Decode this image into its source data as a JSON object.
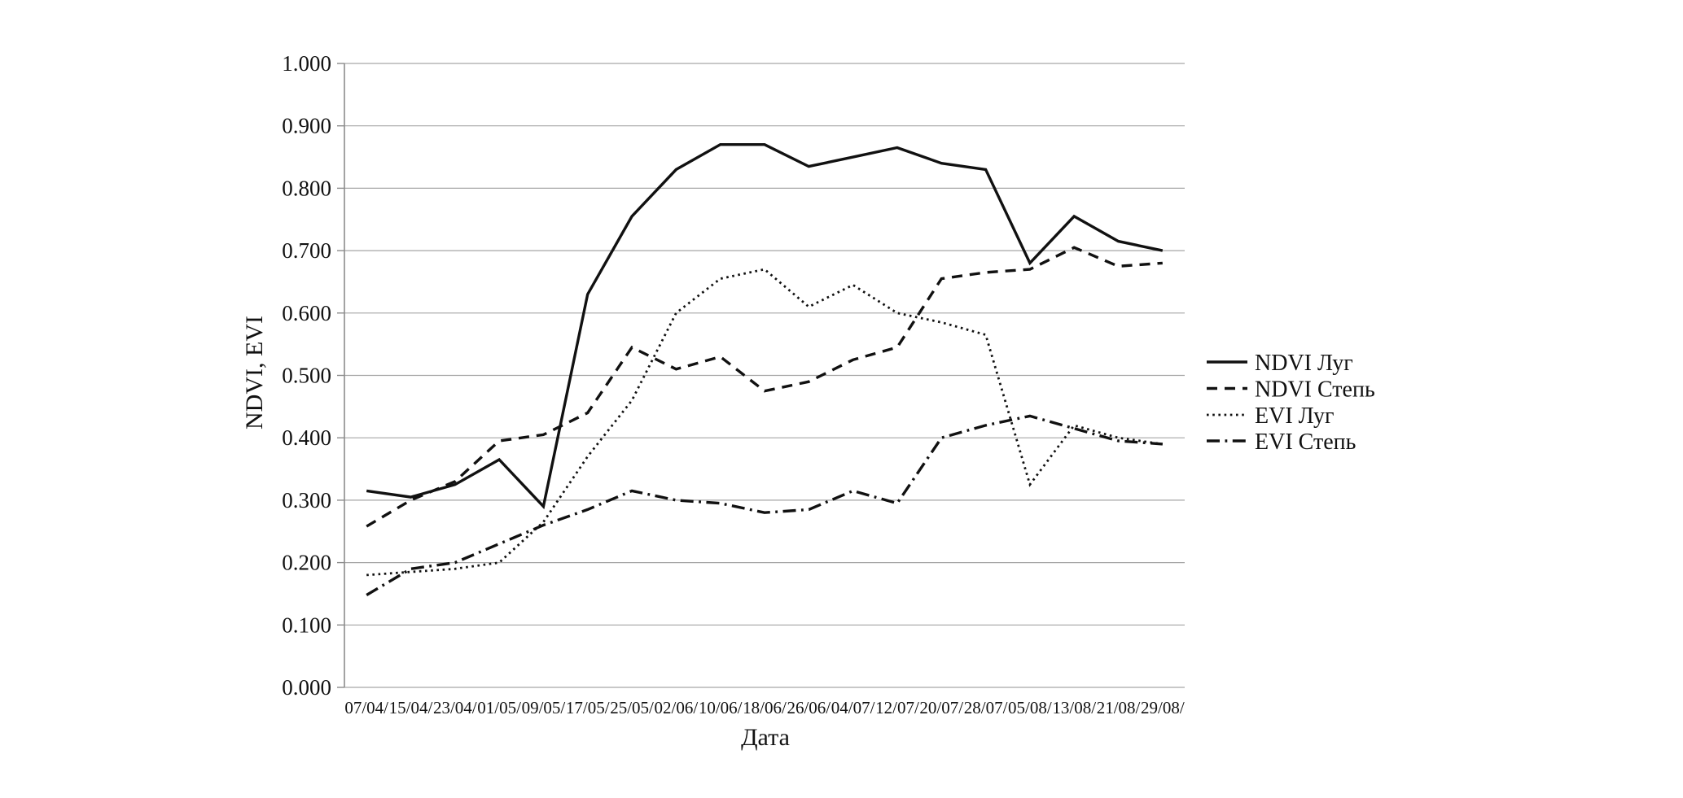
{
  "figure": {
    "background": "#ffffff",
    "colors": {
      "line": "#111111",
      "grid": "#a6a6a6",
      "axis": "#8c8c8c",
      "text": "#111111"
    },
    "y_axis": {
      "title": "NDVI, EVI",
      "min": 0.0,
      "max": 1.0,
      "step": 0.1,
      "tick_labels": [
        "0.000",
        "0.100",
        "0.200",
        "0.300",
        "0.400",
        "0.500",
        "0.600",
        "0.700",
        "0.800",
        "0.900",
        "1.000"
      ]
    },
    "x_axis": {
      "title": "Дата"
    },
    "legend": {
      "position": "right",
      "items": [
        {
          "label": "NDVI Луг",
          "style": "solid"
        },
        {
          "label": "NDVI Степь",
          "style": "dashed"
        },
        {
          "label": "EVI Луг",
          "style": "dotted"
        },
        {
          "label": "EVI Степь",
          "style": "dash-dot"
        }
      ]
    }
  },
  "chart_data": {
    "type": "line",
    "title": "",
    "xlabel": "Дата",
    "ylabel": "NDVI, EVI",
    "ylim": [
      0.0,
      1.0
    ],
    "grid": true,
    "legend_position": "right",
    "categories": [
      "07/04/",
      "15/04/",
      "23/04/",
      "01/05/",
      "09/05/",
      "17/05/",
      "25/05/",
      "02/06/",
      "10/06/",
      "18/06/",
      "26/06/",
      "04/07/",
      "12/07/",
      "20/07/",
      "28/07/",
      "05/08/",
      "13/08/",
      "21/08/",
      "29/08/"
    ],
    "series": [
      {
        "name": "NDVI Луг",
        "line_style": "solid",
        "values": [
          0.315,
          0.305,
          0.325,
          0.365,
          0.29,
          0.63,
          0.755,
          0.83,
          0.87,
          0.87,
          0.835,
          0.85,
          0.865,
          0.84,
          0.83,
          0.68,
          0.755,
          0.715,
          0.7
        ]
      },
      {
        "name": "NDVI Степь",
        "line_style": "dashed",
        "values": [
          0.258,
          0.3,
          0.33,
          0.395,
          0.405,
          0.44,
          0.545,
          0.51,
          0.53,
          0.475,
          0.49,
          0.525,
          0.545,
          0.655,
          0.665,
          0.67,
          0.705,
          0.675,
          0.68
        ]
      },
      {
        "name": "EVI Луг",
        "line_style": "dotted",
        "values": [
          0.18,
          0.185,
          0.19,
          0.2,
          0.265,
          0.37,
          0.46,
          0.6,
          0.655,
          0.67,
          0.61,
          0.645,
          0.6,
          0.585,
          0.565,
          0.325,
          0.42,
          0.4,
          0.39
        ]
      },
      {
        "name": "EVI Степь",
        "line_style": "dash-dot",
        "values": [
          0.148,
          0.19,
          0.2,
          0.23,
          0.26,
          0.285,
          0.315,
          0.3,
          0.295,
          0.28,
          0.285,
          0.315,
          0.295,
          0.4,
          0.42,
          0.435,
          0.415,
          0.395,
          0.39
        ]
      }
    ]
  }
}
